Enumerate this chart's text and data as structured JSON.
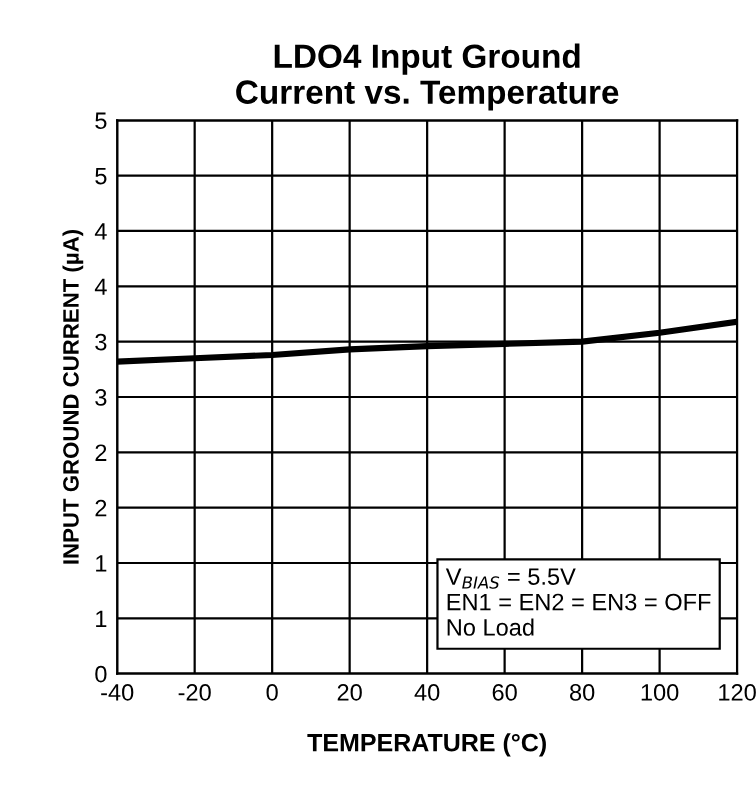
{
  "chart_data": {
    "type": "line",
    "title": "LDO4 Input Ground\nCurrent vs. Temperature",
    "xlabel": "TEMPERATURE (°C)",
    "ylabel": "INPUT GROUND CURRENT (µA)",
    "x": [
      -40,
      -20,
      0,
      20,
      40,
      60,
      80,
      100,
      120
    ],
    "series": [
      {
        "color": "#000000",
        "values": [
          2.82,
          2.85,
          2.88,
          2.93,
          2.96,
          2.98,
          3.0,
          3.08,
          3.18
        ]
      }
    ],
    "xlim": [
      -40,
      120
    ],
    "xticks": [
      -40,
      -20,
      0,
      20,
      40,
      60,
      80,
      100,
      120
    ],
    "ylim": [
      0,
      5
    ],
    "yticks": [
      0,
      {
        "value": 0.5,
        "label": "1"
      },
      1,
      {
        "value": 1.5,
        "label": "2"
      },
      2,
      {
        "value": 2.5,
        "label": "3"
      },
      3,
      {
        "value": 3.5,
        "label": "4"
      },
      4,
      {
        "value": 4.5,
        "label": "5"
      },
      5
    ],
    "grid": true,
    "legend": false,
    "annotations": [
      "V$_{BIAS}$ = 5.5V\nEN1 = EN2 = EN3 = OFF\nNo Load"
    ]
  }
}
